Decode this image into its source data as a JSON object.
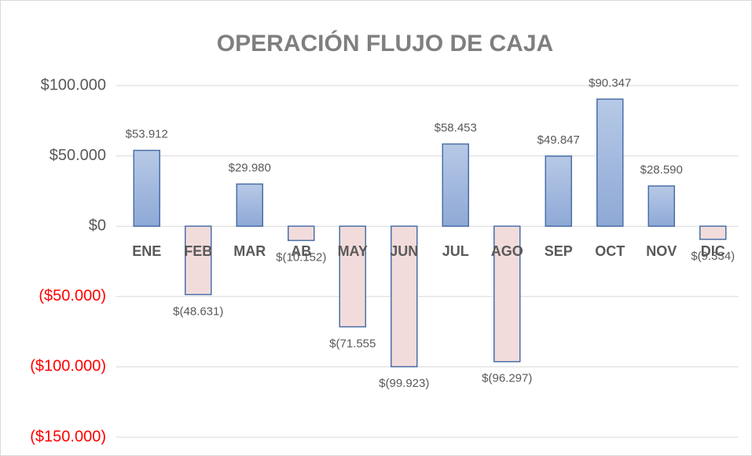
{
  "chart_data": {
    "type": "bar",
    "title": "OPERACIÓN FLUJO DE CAJA",
    "categories": [
      "ENE",
      "FEB",
      "MAR",
      "AB",
      "MAY",
      "JUN",
      "JUL",
      "AGO",
      "SEP",
      "OCT",
      "NOV",
      "DIC"
    ],
    "values": [
      53912,
      -48631,
      29980,
      -10152,
      -71555,
      -99923,
      58453,
      -96297,
      49847,
      90347,
      28590,
      -9334
    ],
    "value_labels": [
      "$53.912",
      "$(48.631)",
      "$29.980",
      "$(10.152)",
      "$(71.555",
      "$(99.923)",
      "$58.453",
      "$(96.297)",
      "$49.847",
      "$90.347",
      "$28.590",
      "$(9.334)"
    ],
    "color": "#a9bedf",
    "negative_color": "#f2dcdb",
    "negative_tick_color": "#ff0000",
    "ylim": [
      -150000,
      100000
    ],
    "yticks": [
      {
        "value": -150000,
        "label": "($150.000)"
      },
      {
        "value": -100000,
        "label": "($100.000)"
      },
      {
        "value": -50000,
        "label": "($50.000)"
      },
      {
        "value": 0,
        "label": "$0"
      },
      {
        "value": 50000,
        "label": "$50.000"
      },
      {
        "value": 100000,
        "label": "$100.000"
      }
    ],
    "grid": true
  }
}
